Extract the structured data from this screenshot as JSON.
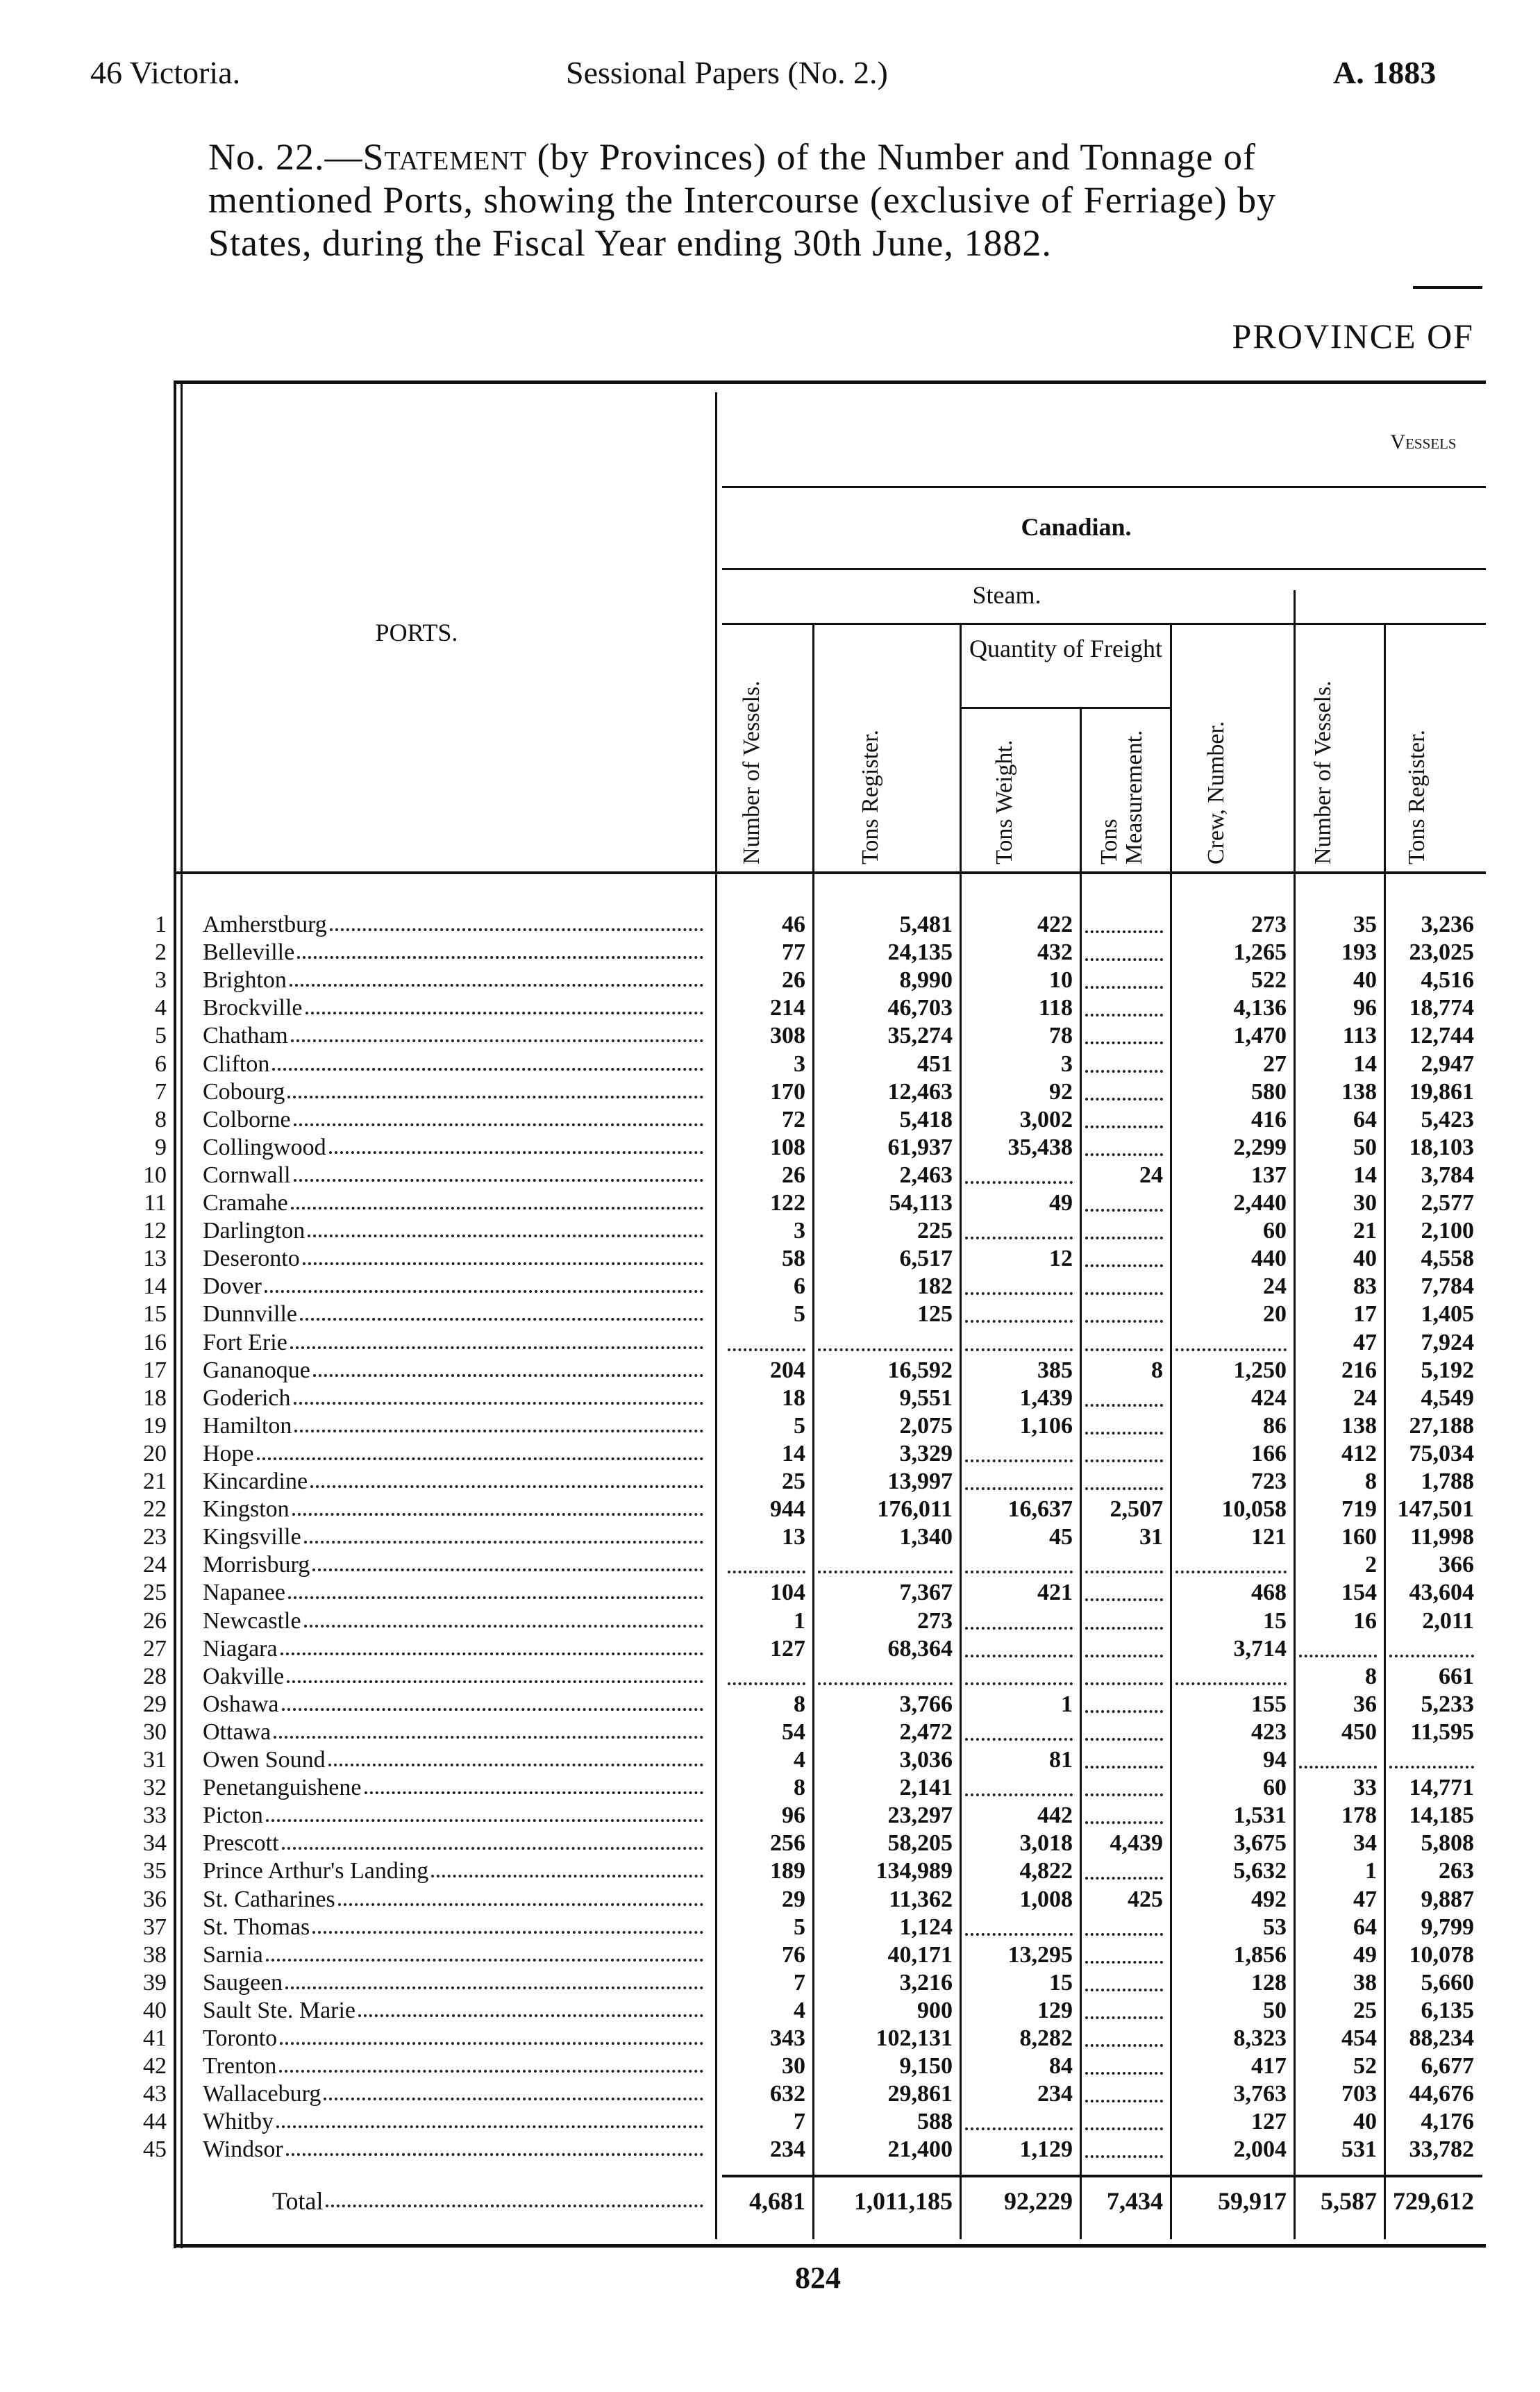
{
  "header": {
    "left": "46 Victoria.",
    "center": "Sessional Papers (No. 2.)",
    "right": "A. 1883"
  },
  "title": {
    "number": "No. 22.—",
    "statement": "Statement",
    "line1_rest": "(by Provinces) of the Number and Tonnage of",
    "line2": "mentioned Ports, showing the Intercourse (exclusive of Ferriage) by",
    "line3": "States, during the Fiscal Year ending 30th June, 1882."
  },
  "province_label": "PROVINCE OF",
  "table": {
    "ports_header": "PORTS.",
    "vessels_header": "Vessels",
    "canadian_header": "Canadian.",
    "steam_header": "Steam.",
    "freight_header": "Quantity of Freight",
    "columns": [
      "Number of Vessels.",
      "Tons Register.",
      "Tons Weight.",
      "Tons Measurement.",
      "Crew, Number.",
      "Number of Vessels.",
      "Tons Register."
    ],
    "empty_marker": "........",
    "rows": [
      {
        "n": "1",
        "port": "Amherstburg",
        "v": [
          "46",
          "5,481",
          "422",
          null,
          "273",
          "35",
          "3,236"
        ]
      },
      {
        "n": "2",
        "port": "Belleville",
        "v": [
          "77",
          "24,135",
          "432",
          null,
          "1,265",
          "193",
          "23,025"
        ]
      },
      {
        "n": "3",
        "port": "Brighton",
        "v": [
          "26",
          "8,990",
          "10",
          null,
          "522",
          "40",
          "4,516"
        ]
      },
      {
        "n": "4",
        "port": "Brockville",
        "v": [
          "214",
          "46,703",
          "118",
          null,
          "4,136",
          "96",
          "18,774"
        ]
      },
      {
        "n": "5",
        "port": "Chatham",
        "v": [
          "308",
          "35,274",
          "78",
          null,
          "1,470",
          "113",
          "12,744"
        ]
      },
      {
        "n": "6",
        "port": "Clifton",
        "v": [
          "3",
          "451",
          "3",
          null,
          "27",
          "14",
          "2,947"
        ]
      },
      {
        "n": "7",
        "port": "Cobourg",
        "v": [
          "170",
          "12,463",
          "92",
          null,
          "580",
          "138",
          "19,861"
        ]
      },
      {
        "n": "8",
        "port": "Colborne",
        "v": [
          "72",
          "5,418",
          "3,002",
          null,
          "416",
          "64",
          "5,423"
        ]
      },
      {
        "n": "9",
        "port": "Collingwood",
        "v": [
          "108",
          "61,937",
          "35,438",
          null,
          "2,299",
          "50",
          "18,103"
        ]
      },
      {
        "n": "10",
        "port": "Cornwall",
        "v": [
          "26",
          "2,463",
          null,
          "24",
          "137",
          "14",
          "3,784"
        ]
      },
      {
        "n": "11",
        "port": "Cramahe",
        "v": [
          "122",
          "54,113",
          "49",
          null,
          "2,440",
          "30",
          "2,577"
        ]
      },
      {
        "n": "12",
        "port": "Darlington",
        "v": [
          "3",
          "225",
          null,
          null,
          "60",
          "21",
          "2,100"
        ]
      },
      {
        "n": "13",
        "port": "Deseronto",
        "v": [
          "58",
          "6,517",
          "12",
          null,
          "440",
          "40",
          "4,558"
        ]
      },
      {
        "n": "14",
        "port": "Dover",
        "v": [
          "6",
          "182",
          null,
          null,
          "24",
          "83",
          "7,784"
        ]
      },
      {
        "n": "15",
        "port": "Dunnville",
        "v": [
          "5",
          "125",
          null,
          null,
          "20",
          "17",
          "1,405"
        ]
      },
      {
        "n": "16",
        "port": "Fort Erie",
        "v": [
          null,
          null,
          null,
          null,
          null,
          "47",
          "7,924"
        ]
      },
      {
        "n": "17",
        "port": "Gananoque",
        "v": [
          "204",
          "16,592",
          "385",
          "8",
          "1,250",
          "216",
          "5,192"
        ]
      },
      {
        "n": "18",
        "port": "Goderich",
        "v": [
          "18",
          "9,551",
          "1,439",
          null,
          "424",
          "24",
          "4,549"
        ]
      },
      {
        "n": "19",
        "port": "Hamilton",
        "v": [
          "5",
          "2,075",
          "1,106",
          null,
          "86",
          "138",
          "27,188"
        ]
      },
      {
        "n": "20",
        "port": "Hope",
        "v": [
          "14",
          "3,329",
          null,
          null,
          "166",
          "412",
          "75,034"
        ]
      },
      {
        "n": "21",
        "port": "Kincardine",
        "v": [
          "25",
          "13,997",
          null,
          null,
          "723",
          "8",
          "1,788"
        ]
      },
      {
        "n": "22",
        "port": "Kingston",
        "v": [
          "944",
          "176,011",
          "16,637",
          "2,507",
          "10,058",
          "719",
          "147,501"
        ]
      },
      {
        "n": "23",
        "port": "Kingsville",
        "v": [
          "13",
          "1,340",
          "45",
          "31",
          "121",
          "160",
          "11,998"
        ]
      },
      {
        "n": "24",
        "port": "Morrisburg",
        "v": [
          null,
          null,
          null,
          null,
          null,
          "2",
          "366"
        ]
      },
      {
        "n": "25",
        "port": "Napanee",
        "v": [
          "104",
          "7,367",
          "421",
          null,
          "468",
          "154",
          "43,604"
        ]
      },
      {
        "n": "26",
        "port": "Newcastle",
        "v": [
          "1",
          "273",
          null,
          null,
          "15",
          "16",
          "2,011"
        ]
      },
      {
        "n": "27",
        "port": "Niagara",
        "v": [
          "127",
          "68,364",
          null,
          null,
          "3,714",
          null,
          null
        ]
      },
      {
        "n": "28",
        "port": "Oakville",
        "v": [
          null,
          null,
          null,
          null,
          null,
          "8",
          "661"
        ]
      },
      {
        "n": "29",
        "port": "Oshawa",
        "v": [
          "8",
          "3,766",
          "1",
          null,
          "155",
          "36",
          "5,233"
        ]
      },
      {
        "n": "30",
        "port": "Ottawa",
        "v": [
          "54",
          "2,472",
          null,
          null,
          "423",
          "450",
          "11,595"
        ]
      },
      {
        "n": "31",
        "port": "Owen Sound",
        "v": [
          "4",
          "3,036",
          "81",
          null,
          "94",
          null,
          null
        ]
      },
      {
        "n": "32",
        "port": "Penetanguishene",
        "v": [
          "8",
          "2,141",
          null,
          null,
          "60",
          "33",
          "14,771"
        ]
      },
      {
        "n": "33",
        "port": "Picton",
        "v": [
          "96",
          "23,297",
          "442",
          null,
          "1,531",
          "178",
          "14,185"
        ]
      },
      {
        "n": "34",
        "port": "Prescott",
        "v": [
          "256",
          "58,205",
          "3,018",
          "4,439",
          "3,675",
          "34",
          "5,808"
        ]
      },
      {
        "n": "35",
        "port": "Prince Arthur's Landing",
        "v": [
          "189",
          "134,989",
          "4,822",
          null,
          "5,632",
          "1",
          "263"
        ]
      },
      {
        "n": "36",
        "port": "St. Catharines",
        "v": [
          "29",
          "11,362",
          "1,008",
          "425",
          "492",
          "47",
          "9,887"
        ]
      },
      {
        "n": "37",
        "port": "St. Thomas",
        "v": [
          "5",
          "1,124",
          null,
          null,
          "53",
          "64",
          "9,799"
        ]
      },
      {
        "n": "38",
        "port": "Sarnia",
        "v": [
          "76",
          "40,171",
          "13,295",
          null,
          "1,856",
          "49",
          "10,078"
        ]
      },
      {
        "n": "39",
        "port": "Saugeen",
        "v": [
          "7",
          "3,216",
          "15",
          null,
          "128",
          "38",
          "5,660"
        ]
      },
      {
        "n": "40",
        "port": "Sault Ste. Marie",
        "v": [
          "4",
          "900",
          "129",
          null,
          "50",
          "25",
          "6,135"
        ]
      },
      {
        "n": "41",
        "port": "Toronto",
        "v": [
          "343",
          "102,131",
          "8,282",
          null,
          "8,323",
          "454",
          "88,234"
        ]
      },
      {
        "n": "42",
        "port": "Trenton",
        "v": [
          "30",
          "9,150",
          "84",
          null,
          "417",
          "52",
          "6,677"
        ]
      },
      {
        "n": "43",
        "port": "Wallaceburg",
        "v": [
          "632",
          "29,861",
          "234",
          null,
          "3,763",
          "703",
          "44,676"
        ]
      },
      {
        "n": "44",
        "port": "Whitby",
        "v": [
          "7",
          "588",
          null,
          null,
          "127",
          "40",
          "4,176"
        ]
      },
      {
        "n": "45",
        "port": "Windsor",
        "v": [
          "234",
          "21,400",
          "1,129",
          null,
          "2,004",
          "531",
          "33,782"
        ]
      }
    ],
    "total": {
      "label": "Total",
      "v": [
        "4,681",
        "1,011,185",
        "92,229",
        "7,434",
        "59,917",
        "5,587",
        "729,612"
      ]
    }
  },
  "page_number": "824"
}
